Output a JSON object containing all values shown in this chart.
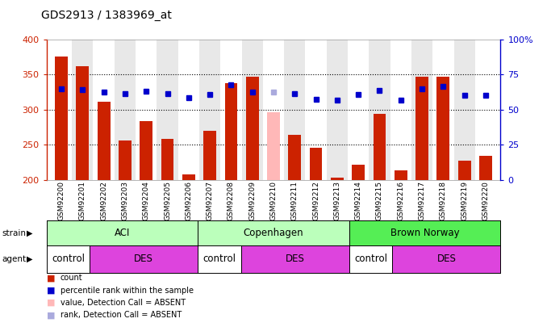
{
  "title": "GDS2913 / 1383969_at",
  "samples": [
    "GSM92200",
    "GSM92201",
    "GSM92202",
    "GSM92203",
    "GSM92204",
    "GSM92205",
    "GSM92206",
    "GSM92207",
    "GSM92208",
    "GSM92209",
    "GSM92210",
    "GSM92211",
    "GSM92212",
    "GSM92213",
    "GSM92214",
    "GSM92215",
    "GSM92216",
    "GSM92217",
    "GSM92218",
    "GSM92219",
    "GSM92220"
  ],
  "bar_values": [
    375,
    362,
    311,
    256,
    284,
    258,
    208,
    270,
    337,
    347,
    296,
    264,
    246,
    203,
    221,
    294,
    214,
    347,
    347,
    227,
    234
  ],
  "bar_absent": [
    false,
    false,
    false,
    false,
    false,
    false,
    false,
    false,
    false,
    false,
    true,
    false,
    false,
    false,
    false,
    false,
    false,
    false,
    false,
    false,
    false
  ],
  "dot_values_left": [
    329,
    328,
    325,
    323,
    326,
    323,
    317,
    321,
    335,
    325,
    325,
    323,
    315,
    313,
    321,
    327,
    313,
    329,
    333,
    320,
    320
  ],
  "dot_absent": [
    false,
    false,
    false,
    false,
    false,
    false,
    false,
    false,
    false,
    false,
    true,
    false,
    false,
    false,
    false,
    false,
    false,
    false,
    false,
    false,
    false
  ],
  "ylim_left": [
    200,
    400
  ],
  "ylim_right": [
    0,
    100
  ],
  "yticks_left": [
    200,
    250,
    300,
    350,
    400
  ],
  "yticks_right": [
    0,
    25,
    50,
    75,
    100
  ],
  "bar_color": "#cc2200",
  "bar_absent_color": "#ffb8b8",
  "dot_color": "#0000cc",
  "dot_absent_color": "#aaaadd",
  "strain_groups": [
    {
      "label": "ACI",
      "start": 0,
      "end": 7,
      "color": "#bbffbb"
    },
    {
      "label": "Copenhagen",
      "start": 7,
      "end": 14,
      "color": "#bbffbb"
    },
    {
      "label": "Brown Norway",
      "start": 14,
      "end": 21,
      "color": "#55ee55"
    }
  ],
  "agent_groups": [
    {
      "label": "control",
      "start": 0,
      "end": 2,
      "color": "#ffffff"
    },
    {
      "label": "DES",
      "start": 2,
      "end": 7,
      "color": "#dd44dd"
    },
    {
      "label": "control",
      "start": 7,
      "end": 9,
      "color": "#ffffff"
    },
    {
      "label": "DES",
      "start": 9,
      "end": 14,
      "color": "#dd44dd"
    },
    {
      "label": "control",
      "start": 14,
      "end": 16,
      "color": "#ffffff"
    },
    {
      "label": "DES",
      "start": 16,
      "end": 21,
      "color": "#dd44dd"
    }
  ],
  "legend_items": [
    {
      "label": "count",
      "color": "#cc2200"
    },
    {
      "label": "percentile rank within the sample",
      "color": "#0000cc"
    },
    {
      "label": "value, Detection Call = ABSENT",
      "color": "#ffb8b8"
    },
    {
      "label": "rank, Detection Call = ABSENT",
      "color": "#aaaadd"
    }
  ],
  "left_axis_color": "#cc2200",
  "right_axis_color": "#0000cc",
  "col_bg_odd": "#e8e8e8",
  "col_bg_even": "#ffffff"
}
